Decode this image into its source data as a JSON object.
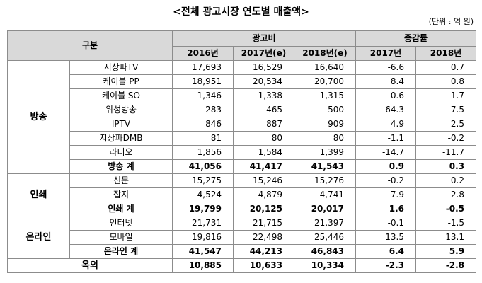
{
  "title": "<전체 광고시장 연도별 매출액>",
  "unit": "(단위 : 억 원)",
  "header": {
    "category": "구분",
    "ad_cost": "광고비",
    "growth": "증감률",
    "years": [
      "2016년",
      "2017년(e)",
      "2018년(e)"
    ],
    "growth_years": [
      "2017년",
      "2018년"
    ]
  },
  "groups": [
    {
      "name": "방송",
      "rows": [
        {
          "label": "지상파TV",
          "v": [
            "17,693",
            "16,529",
            "16,640",
            "-6.6",
            "0.7"
          ]
        },
        {
          "label": "케이블 PP",
          "v": [
            "18,951",
            "20,534",
            "20,700",
            "8.4",
            "0.8"
          ]
        },
        {
          "label": "케이블 SO",
          "v": [
            "1,346",
            "1,338",
            "1,315",
            "-0.6",
            "-1.7"
          ]
        },
        {
          "label": "위성방송",
          "v": [
            "283",
            "465",
            "500",
            "64.3",
            "7.5"
          ]
        },
        {
          "label": "IPTV",
          "v": [
            "846",
            "887",
            "909",
            "4.9",
            "2.5"
          ]
        },
        {
          "label": "지상파DMB",
          "v": [
            "81",
            "80",
            "80",
            "-1.1",
            "-0.2"
          ]
        },
        {
          "label": "라디오",
          "v": [
            "1,856",
            "1,584",
            "1,399",
            "-14.7",
            "-11.7"
          ]
        }
      ],
      "total": {
        "label": "방송 계",
        "v": [
          "41,056",
          "41,417",
          "41,543",
          "0.9",
          "0.3"
        ]
      }
    },
    {
      "name": "인쇄",
      "rows": [
        {
          "label": "신문",
          "v": [
            "15,275",
            "15,246",
            "15,276",
            "-0.2",
            "0.2"
          ]
        },
        {
          "label": "잡지",
          "v": [
            "4,524",
            "4,879",
            "4,741",
            "7.9",
            "-2.8"
          ]
        }
      ],
      "total": {
        "label": "인쇄 계",
        "v": [
          "19,799",
          "20,125",
          "20,017",
          "1.6",
          "-0.5"
        ]
      }
    },
    {
      "name": "온라인",
      "rows": [
        {
          "label": "인터넷",
          "v": [
            "21,731",
            "21,715",
            "21,397",
            "-0.1",
            "-1.5"
          ]
        },
        {
          "label": "모바일",
          "v": [
            "19,816",
            "22,498",
            "25,446",
            "13.5",
            "13.1"
          ]
        }
      ],
      "total": {
        "label": "온라인 계",
        "v": [
          "41,547",
          "44,213",
          "46,843",
          "6.4",
          "5.9"
        ]
      }
    }
  ],
  "partial_row": {
    "label": "옥외",
    "v": [
      "10,885",
      "10,633",
      "10,334",
      "-2.3",
      "-2.8"
    ]
  }
}
